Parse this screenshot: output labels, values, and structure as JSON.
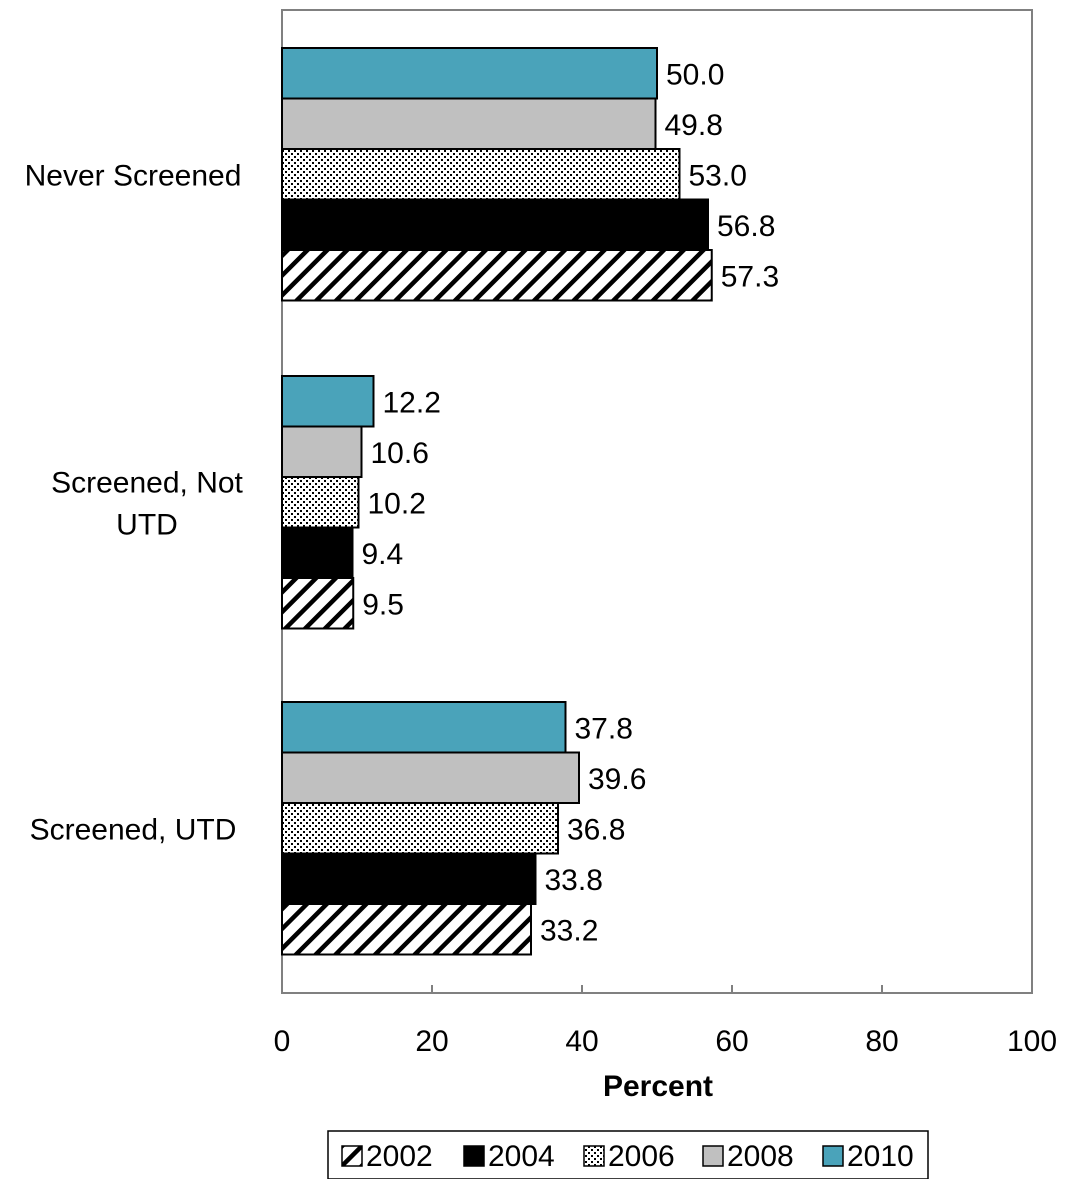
{
  "chart_data": {
    "type": "bar",
    "orientation": "horizontal",
    "categories": [
      "Never Screened",
      "Screened, Not UTD",
      "Screened, UTD"
    ],
    "category_label_lines": [
      [
        "Never Screened"
      ],
      [
        "Screened, Not",
        "UTD"
      ],
      [
        "Screened, UTD"
      ]
    ],
    "series": [
      {
        "name": "2002",
        "values": [
          57.3,
          9.5,
          33.2
        ],
        "pattern": "diagonal-hatch",
        "color": "#000000"
      },
      {
        "name": "2004",
        "values": [
          56.8,
          9.4,
          33.8
        ],
        "pattern": "solid",
        "color": "#000000"
      },
      {
        "name": "2006",
        "values": [
          53.0,
          10.2,
          36.8
        ],
        "pattern": "dotted",
        "color": "#000000"
      },
      {
        "name": "2008",
        "values": [
          49.8,
          10.6,
          39.6
        ],
        "pattern": "solid",
        "color": "#c0c0c0"
      },
      {
        "name": "2010",
        "values": [
          50.0,
          12.2,
          37.8
        ],
        "pattern": "solid",
        "color": "#4aa3ba"
      }
    ],
    "data_labels": [
      [
        "57.3",
        "9.5",
        "33.2"
      ],
      [
        "56.8",
        "9.4",
        "33.8"
      ],
      [
        "53.0",
        "10.2",
        "36.8"
      ],
      [
        "49.8",
        "10.6",
        "39.6"
      ],
      [
        "50.0",
        "12.2",
        "37.8"
      ]
    ],
    "xlabel": "Percent",
    "ylabel": "",
    "xlim": [
      0,
      100
    ],
    "xticks": [
      0,
      20,
      40,
      60,
      80,
      100
    ],
    "xtick_labels": [
      "0",
      "20",
      "40",
      "60",
      "80",
      "100"
    ],
    "grid": false,
    "legend_position": "bottom"
  }
}
